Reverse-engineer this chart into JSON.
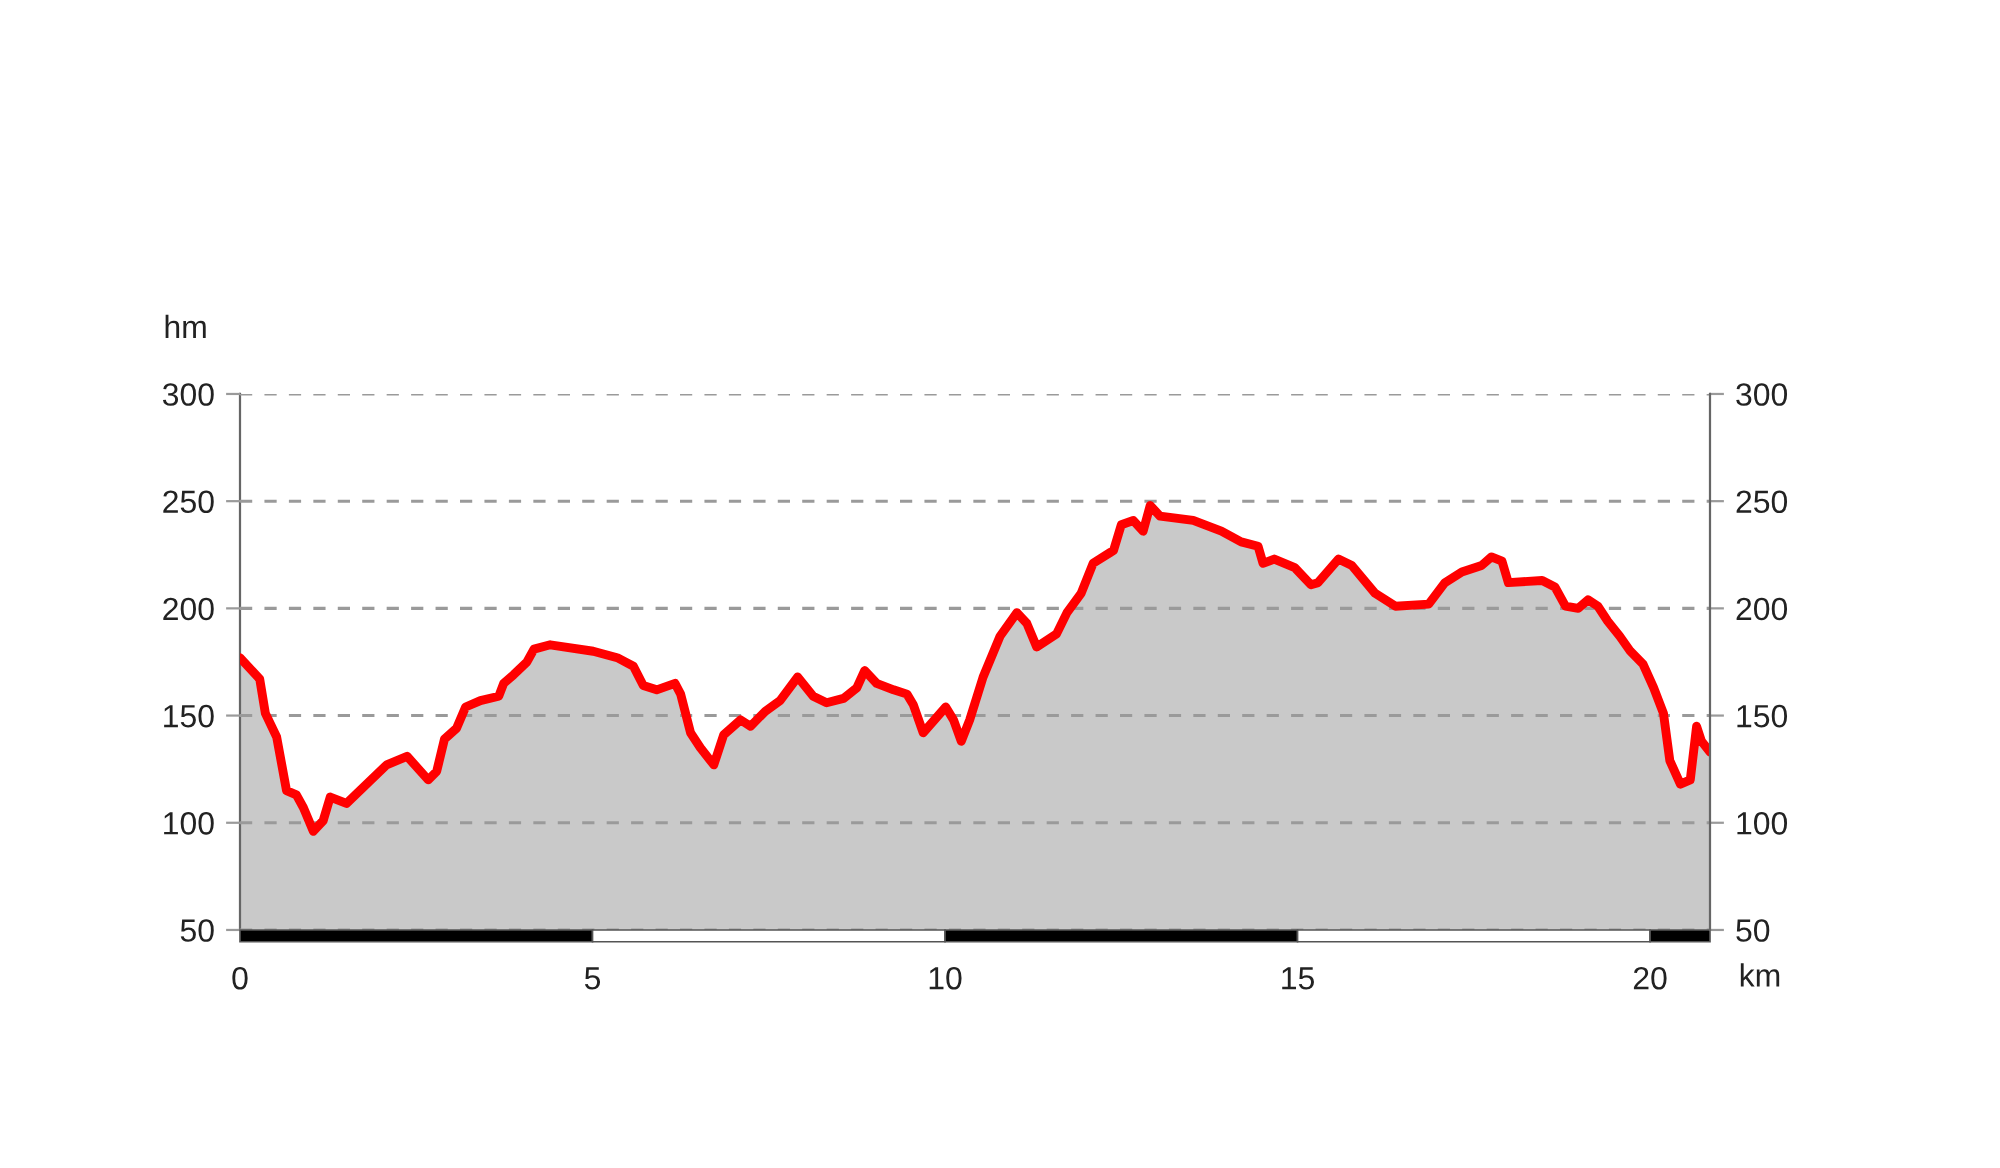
{
  "chart_data": {
    "type": "area",
    "xlabel": "km",
    "ylabel": "hm",
    "x": [
      0.0,
      0.28,
      0.36,
      0.52,
      0.66,
      0.8,
      0.9,
      1.04,
      1.18,
      1.28,
      1.51,
      2.08,
      2.37,
      2.67,
      2.79,
      2.9,
      3.07,
      3.2,
      3.41,
      3.67,
      3.74,
      3.88,
      4.07,
      4.17,
      4.4,
      5.01,
      5.35,
      5.58,
      5.72,
      5.91,
      6.17,
      6.25,
      6.39,
      6.53,
      6.72,
      6.86,
      7.1,
      7.24,
      7.45,
      7.66,
      7.91,
      8.13,
      8.32,
      8.56,
      8.75,
      8.86,
      9.03,
      9.27,
      9.46,
      9.55,
      9.69,
      10.01,
      10.12,
      10.23,
      10.35,
      10.54,
      10.78,
      11.02,
      11.16,
      11.3,
      11.58,
      11.73,
      11.93,
      12.1,
      12.34,
      12.39,
      12.5,
      12.67,
      12.81,
      12.91,
      13.05,
      13.52,
      13.92,
      14.2,
      14.44,
      14.51,
      14.67,
      14.96,
      15.19,
      15.29,
      15.58,
      15.77,
      16.1,
      16.39,
      16.86,
      17.09,
      17.33,
      17.61,
      17.75,
      17.9,
      17.99,
      18.47,
      18.65,
      18.8,
      18.98,
      19.12,
      19.26,
      19.4,
      19.57,
      19.72,
      19.9,
      20.05,
      20.19,
      20.28,
      20.43,
      20.57,
      20.66,
      20.73,
      20.85
    ],
    "series": [
      {
        "color": "#ff0000",
        "values": [
          177,
          167,
          151,
          140,
          115,
          113,
          107,
          96,
          101,
          112,
          109,
          127,
          131,
          120,
          124,
          139,
          144,
          154,
          157,
          159,
          165,
          169,
          175,
          181,
          183,
          180,
          177,
          173,
          164,
          162,
          165,
          160,
          142,
          135,
          127,
          141,
          148,
          145,
          152,
          157,
          168,
          159,
          156,
          158,
          163,
          171,
          165,
          162,
          160,
          155,
          142,
          154,
          148,
          138,
          148,
          168,
          187,
          198,
          193,
          182,
          188,
          198,
          207,
          221,
          226,
          227,
          239,
          241,
          236,
          248,
          243,
          241,
          236,
          231,
          229,
          221,
          223,
          219,
          211,
          212,
          223,
          220,
          207,
          201,
          202,
          212,
          217,
          220,
          224,
          222,
          212,
          213,
          210,
          201,
          200,
          204,
          201,
          194,
          187,
          180,
          174,
          163,
          151,
          129,
          118,
          120,
          145,
          138,
          133
        ]
      }
    ],
    "xlim": [
      0,
      20.85
    ],
    "xticks": [
      0,
      5,
      10,
      15,
      20
    ],
    "ylim": [
      50,
      300
    ],
    "yticks": [
      50,
      100,
      150,
      200,
      250,
      300
    ],
    "y2lim": [
      50,
      300
    ],
    "y2ticks": [
      50,
      100,
      150,
      200,
      250,
      300
    ],
    "grid": "y"
  }
}
